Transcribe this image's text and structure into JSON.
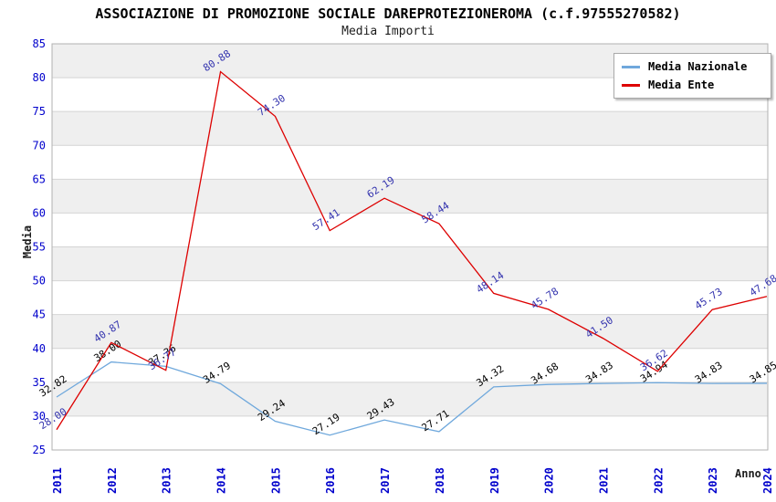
{
  "title": "ASSOCIAZIONE DI PROMOZIONE SOCIALE DAREPROTEZIONEROMA (c.f.97555270582)",
  "subtitle": "Media Importi",
  "legend": {
    "entries": [
      {
        "label": "Media Nazionale",
        "swatch": "line-swatch-lightblue"
      },
      {
        "label": "Media Ente",
        "swatch": "line-swatch-red"
      }
    ]
  },
  "chart_data": {
    "type": "line",
    "x": [
      "2011",
      "2012",
      "2013",
      "2014",
      "2015",
      "2016",
      "2017",
      "2018",
      "2019",
      "2020",
      "2021",
      "2022",
      "2023",
      "2024"
    ],
    "series": [
      {
        "name": "Media Nazionale",
        "color": "#6FA8DC",
        "label_color": "#000000",
        "values": [
          32.82,
          38.0,
          37.36,
          34.79,
          29.24,
          27.19,
          29.43,
          27.71,
          34.32,
          34.68,
          34.83,
          34.94,
          34.83,
          34.85
        ]
      },
      {
        "name": "Media Ente",
        "color": "#DD0000",
        "label_color": "#3333AE",
        "values": [
          28.0,
          40.87,
          36.77,
          80.88,
          74.3,
          57.41,
          62.19,
          58.44,
          48.14,
          45.78,
          41.5,
          36.62,
          45.73,
          47.68
        ]
      }
    ],
    "xlabel": "Anno",
    "ylabel": "Media",
    "ylim": [
      25,
      85
    ],
    "ytick_step": 5,
    "yticks": [
      25,
      30,
      35,
      40,
      45,
      50,
      55,
      60,
      65,
      70,
      75,
      80,
      85
    ],
    "grid": true,
    "legend_position": "top-right",
    "value_labels_decimals": 2
  },
  "colors": {
    "axis_ticks": "#0000CC",
    "grid": "#D4D4D4",
    "band": "#EFEFEF",
    "plot_border": "#B2B2B2"
  }
}
